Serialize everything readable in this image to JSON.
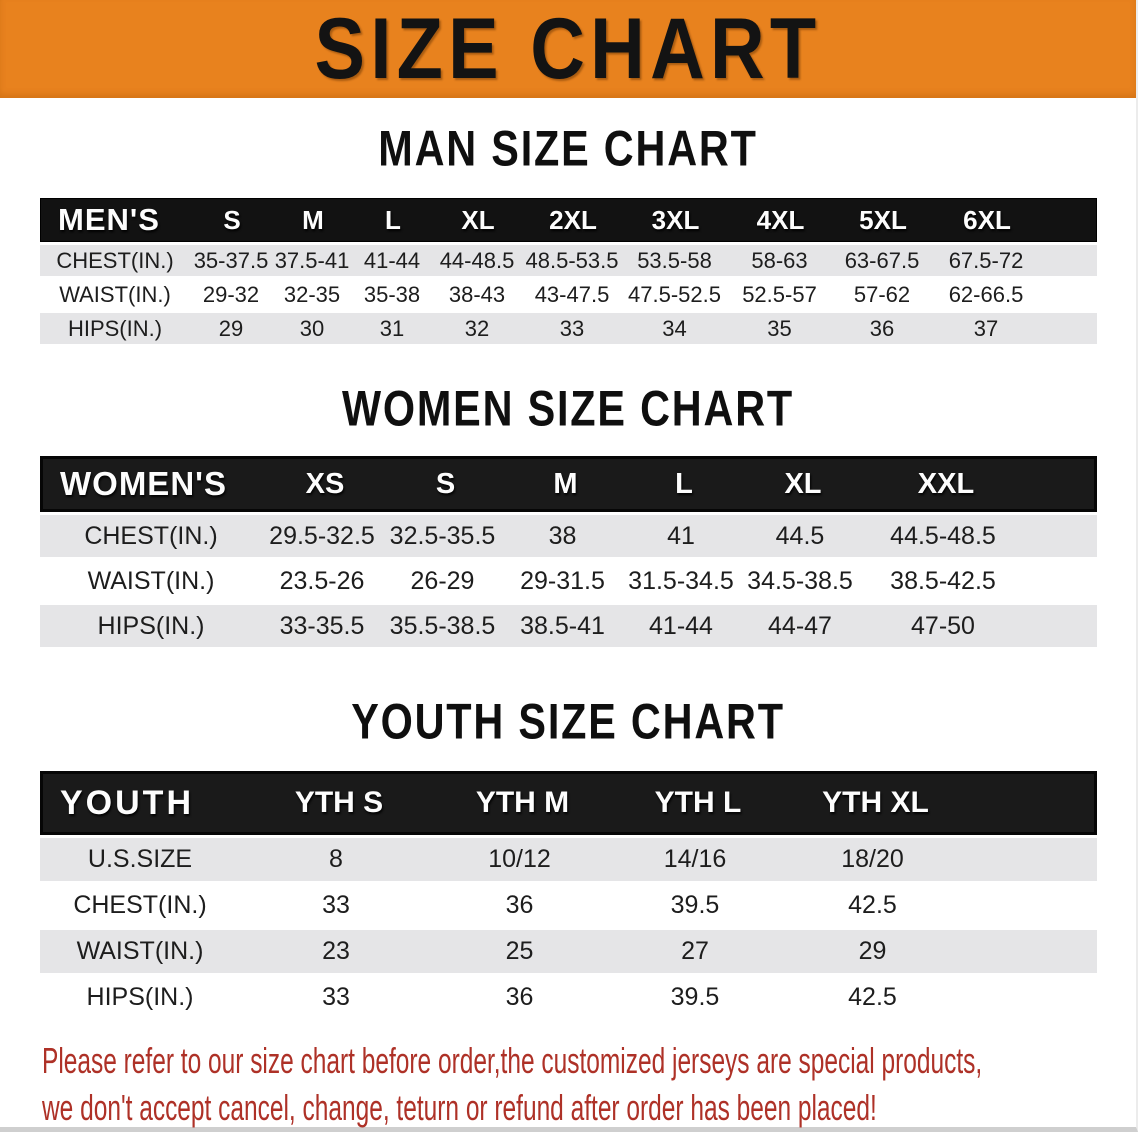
{
  "banner": {
    "title": "SIZE CHART",
    "bg_color": "#E8821E",
    "text_color": "#131313"
  },
  "men": {
    "heading": "MAN SIZE CHART",
    "header": [
      "MEN'S",
      "S",
      "M",
      "L",
      "XL",
      "2XL",
      "3XL",
      "4XL",
      "5XL",
      "6XL"
    ],
    "rows": [
      {
        "label": "CHEST(IN.)",
        "values": [
          "35-37.5",
          "37.5-41",
          "41-44",
          "44-48.5",
          "48.5-53.5",
          "53.5-58",
          "58-63",
          "63-67.5",
          "67.5-72"
        ]
      },
      {
        "label": "WAIST(IN.)",
        "values": [
          "29-32",
          "32-35",
          "35-38",
          "38-43",
          "43-47.5",
          "47.5-52.5",
          "52.5-57",
          "57-62",
          "62-66.5"
        ]
      },
      {
        "label": "HIPS(IN.)",
        "values": [
          "29",
          "30",
          "31",
          "32",
          "33",
          "34",
          "35",
          "36",
          "37"
        ]
      }
    ]
  },
  "women": {
    "heading": "WOMEN SIZE CHART",
    "header": [
      "WOMEN'S",
      "XS",
      "S",
      "M",
      "L",
      "XL",
      "XXL"
    ],
    "rows": [
      {
        "label": "CHEST(IN.)",
        "values": [
          "29.5-32.5",
          "32.5-35.5",
          "38",
          "41",
          "44.5",
          "44.5-48.5"
        ]
      },
      {
        "label": "WAIST(IN.)",
        "values": [
          "23.5-26",
          "26-29",
          "29-31.5",
          "31.5-34.5",
          "34.5-38.5",
          "38.5-42.5"
        ]
      },
      {
        "label": "HIPS(IN.)",
        "values": [
          "33-35.5",
          "35.5-38.5",
          "38.5-41",
          "41-44",
          "44-47",
          "47-50"
        ]
      }
    ]
  },
  "youth": {
    "heading": "YOUTH SIZE CHART",
    "header": [
      "YOUTH",
      "YTH S",
      "YTH M",
      "YTH L",
      "YTH XL"
    ],
    "rows": [
      {
        "label": "U.S.SIZE",
        "values": [
          "8",
          "10/12",
          "14/16",
          "18/20"
        ]
      },
      {
        "label": "CHEST(IN.)",
        "values": [
          "33",
          "36",
          "39.5",
          "42.5"
        ]
      },
      {
        "label": "WAIST(IN.)",
        "values": [
          "23",
          "25",
          "27",
          "29"
        ]
      },
      {
        "label": "HIPS(IN.)",
        "values": [
          "33",
          "36",
          "39.5",
          "42.5"
        ]
      }
    ]
  },
  "footer": {
    "line1": "Please refer to our size chart before order,the customized jerseys are special products,",
    "line2": "we don't accept cancel, change, teturn or refund after order has been placed!",
    "text_color": "#AE3127"
  },
  "colors": {
    "banner_bg": "#E8821E",
    "table_header_bg": "#141414",
    "row_shade": "#E5E5E7",
    "heading_text": "#0F0F0F"
  },
  "chart_data": [
    {
      "type": "table",
      "title": "MAN SIZE CHART",
      "columns": [
        "MEN'S",
        "S",
        "M",
        "L",
        "XL",
        "2XL",
        "3XL",
        "4XL",
        "5XL",
        "6XL"
      ],
      "rows": [
        [
          "CHEST(IN.)",
          "35-37.5",
          "37.5-41",
          "41-44",
          "44-48.5",
          "48.5-53.5",
          "53.5-58",
          "58-63",
          "63-67.5",
          "67.5-72"
        ],
        [
          "WAIST(IN.)",
          "29-32",
          "32-35",
          "35-38",
          "38-43",
          "43-47.5",
          "47.5-52.5",
          "52.5-57",
          "57-62",
          "62-66.5"
        ],
        [
          "HIPS(IN.)",
          "29",
          "30",
          "31",
          "32",
          "33",
          "34",
          "35",
          "36",
          "37"
        ]
      ]
    },
    {
      "type": "table",
      "title": "WOMEN SIZE CHART",
      "columns": [
        "WOMEN'S",
        "XS",
        "S",
        "M",
        "L",
        "XL",
        "XXL"
      ],
      "rows": [
        [
          "CHEST(IN.)",
          "29.5-32.5",
          "32.5-35.5",
          "38",
          "41",
          "44.5",
          "44.5-48.5"
        ],
        [
          "WAIST(IN.)",
          "23.5-26",
          "26-29",
          "29-31.5",
          "31.5-34.5",
          "34.5-38.5",
          "38.5-42.5"
        ],
        [
          "HIPS(IN.)",
          "33-35.5",
          "35.5-38.5",
          "38.5-41",
          "41-44",
          "44-47",
          "47-50"
        ]
      ]
    },
    {
      "type": "table",
      "title": "YOUTH SIZE CHART",
      "columns": [
        "YOUTH",
        "YTH S",
        "YTH M",
        "YTH L",
        "YTH XL"
      ],
      "rows": [
        [
          "U.S.SIZE",
          "8",
          "10/12",
          "14/16",
          "18/20"
        ],
        [
          "CHEST(IN.)",
          "33",
          "36",
          "39.5",
          "42.5"
        ],
        [
          "WAIST(IN.)",
          "23",
          "25",
          "27",
          "29"
        ],
        [
          "HIPS(IN.)",
          "33",
          "36",
          "39.5",
          "42.5"
        ]
      ]
    }
  ]
}
